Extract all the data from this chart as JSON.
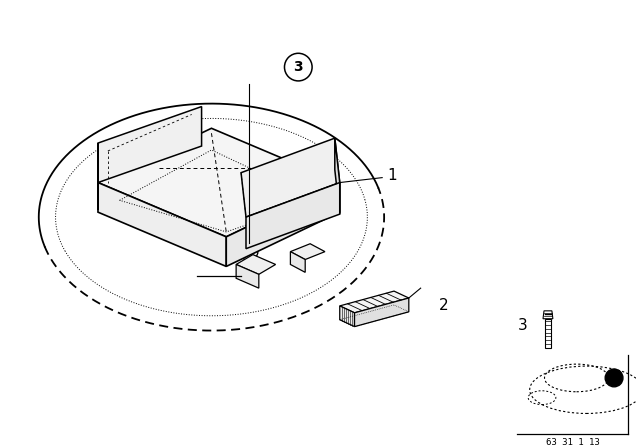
{
  "bg_color": "#ffffff",
  "line_color": "#000000",
  "fig_width": 6.4,
  "fig_height": 4.48,
  "dpi": 100,
  "label1": "1",
  "label2": "2",
  "label3": "3",
  "part_number_text": "63 31 1 13"
}
